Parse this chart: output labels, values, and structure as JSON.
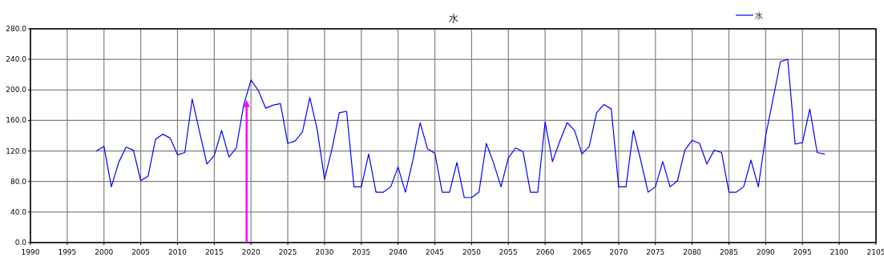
{
  "chart_data": {
    "type": "line",
    "title": "水",
    "legend": "top right",
    "grid": true,
    "marker": "none",
    "line_style": "solid",
    "xlim": [
      1990,
      2105
    ],
    "xticks": [
      1990,
      1995,
      2000,
      2005,
      2010,
      2015,
      2020,
      2025,
      2030,
      2035,
      2040,
      2045,
      2050,
      2055,
      2060,
      2065,
      2070,
      2075,
      2080,
      2085,
      2090,
      2095,
      2100,
      2105
    ],
    "ylim": [
      0,
      280
    ],
    "yticks": [
      {
        "value": 0,
        "label": "0.0"
      },
      {
        "value": 40,
        "label": "40.0"
      },
      {
        "value": 80,
        "label": "80.0"
      },
      {
        "value": 120,
        "label": "120.0"
      },
      {
        "value": 160,
        "label": "160.0"
      },
      {
        "value": 200,
        "label": "200.0"
      },
      {
        "value": 240,
        "label": "240.0"
      },
      {
        "value": 280,
        "label": "280.0"
      }
    ],
    "x": [
      1999,
      2000,
      2001,
      2002,
      2003,
      2004,
      2005,
      2006,
      2007,
      2008,
      2009,
      2010,
      2011,
      2012,
      2013,
      2014,
      2015,
      2016,
      2017,
      2018,
      2019,
      2020,
      2021,
      2022,
      2023,
      2024,
      2025,
      2026,
      2027,
      2028,
      2029,
      2030,
      2031,
      2032,
      2033,
      2034,
      2035,
      2036,
      2037,
      2038,
      2039,
      2040,
      2041,
      2042,
      2043,
      2044,
      2045,
      2046,
      2047,
      2048,
      2049,
      2050,
      2051,
      2052,
      2053,
      2054,
      2055,
      2056,
      2057,
      2058,
      2059,
      2060,
      2061,
      2062,
      2063,
      2064,
      2065,
      2066,
      2067,
      2068,
      2069,
      2070,
      2071,
      2072,
      2073,
      2074,
      2075,
      2076,
      2077,
      2078,
      2079,
      2080,
      2081,
      2082,
      2083,
      2084,
      2085,
      2086,
      2087,
      2088,
      2089,
      2090,
      2091,
      2092,
      2093,
      2094,
      2095,
      2096,
      2097,
      2098
    ],
    "series": [
      {
        "name": "水",
        "color": "#0000ff",
        "values": [
          120,
          126,
          73,
          105,
          125,
          121,
          81,
          87,
          135,
          142,
          137,
          115,
          118,
          188,
          145,
          103,
          114,
          147,
          112,
          124,
          180,
          213,
          199,
          176,
          180,
          182,
          130,
          133,
          145,
          190,
          148,
          83,
          122,
          170,
          172,
          73,
          73,
          116,
          66,
          66,
          73,
          99,
          66,
          107,
          157,
          123,
          117,
          66,
          66,
          105,
          59,
          59,
          66,
          130,
          104,
          73,
          111,
          124,
          119,
          66,
          66,
          158,
          106,
          133,
          157,
          147,
          116,
          126,
          170,
          181,
          175,
          73,
          73,
          147,
          108,
          66,
          73,
          106,
          73,
          81,
          121,
          134,
          130,
          103,
          121,
          118,
          66,
          66,
          73,
          108,
          73,
          140,
          188,
          237,
          240,
          129,
          131,
          175,
          118,
          116
        ]
      }
    ],
    "ref_lines": [
      {
        "axis": "x",
        "value": 2019.4,
        "color": "#ff00ff"
      }
    ]
  }
}
